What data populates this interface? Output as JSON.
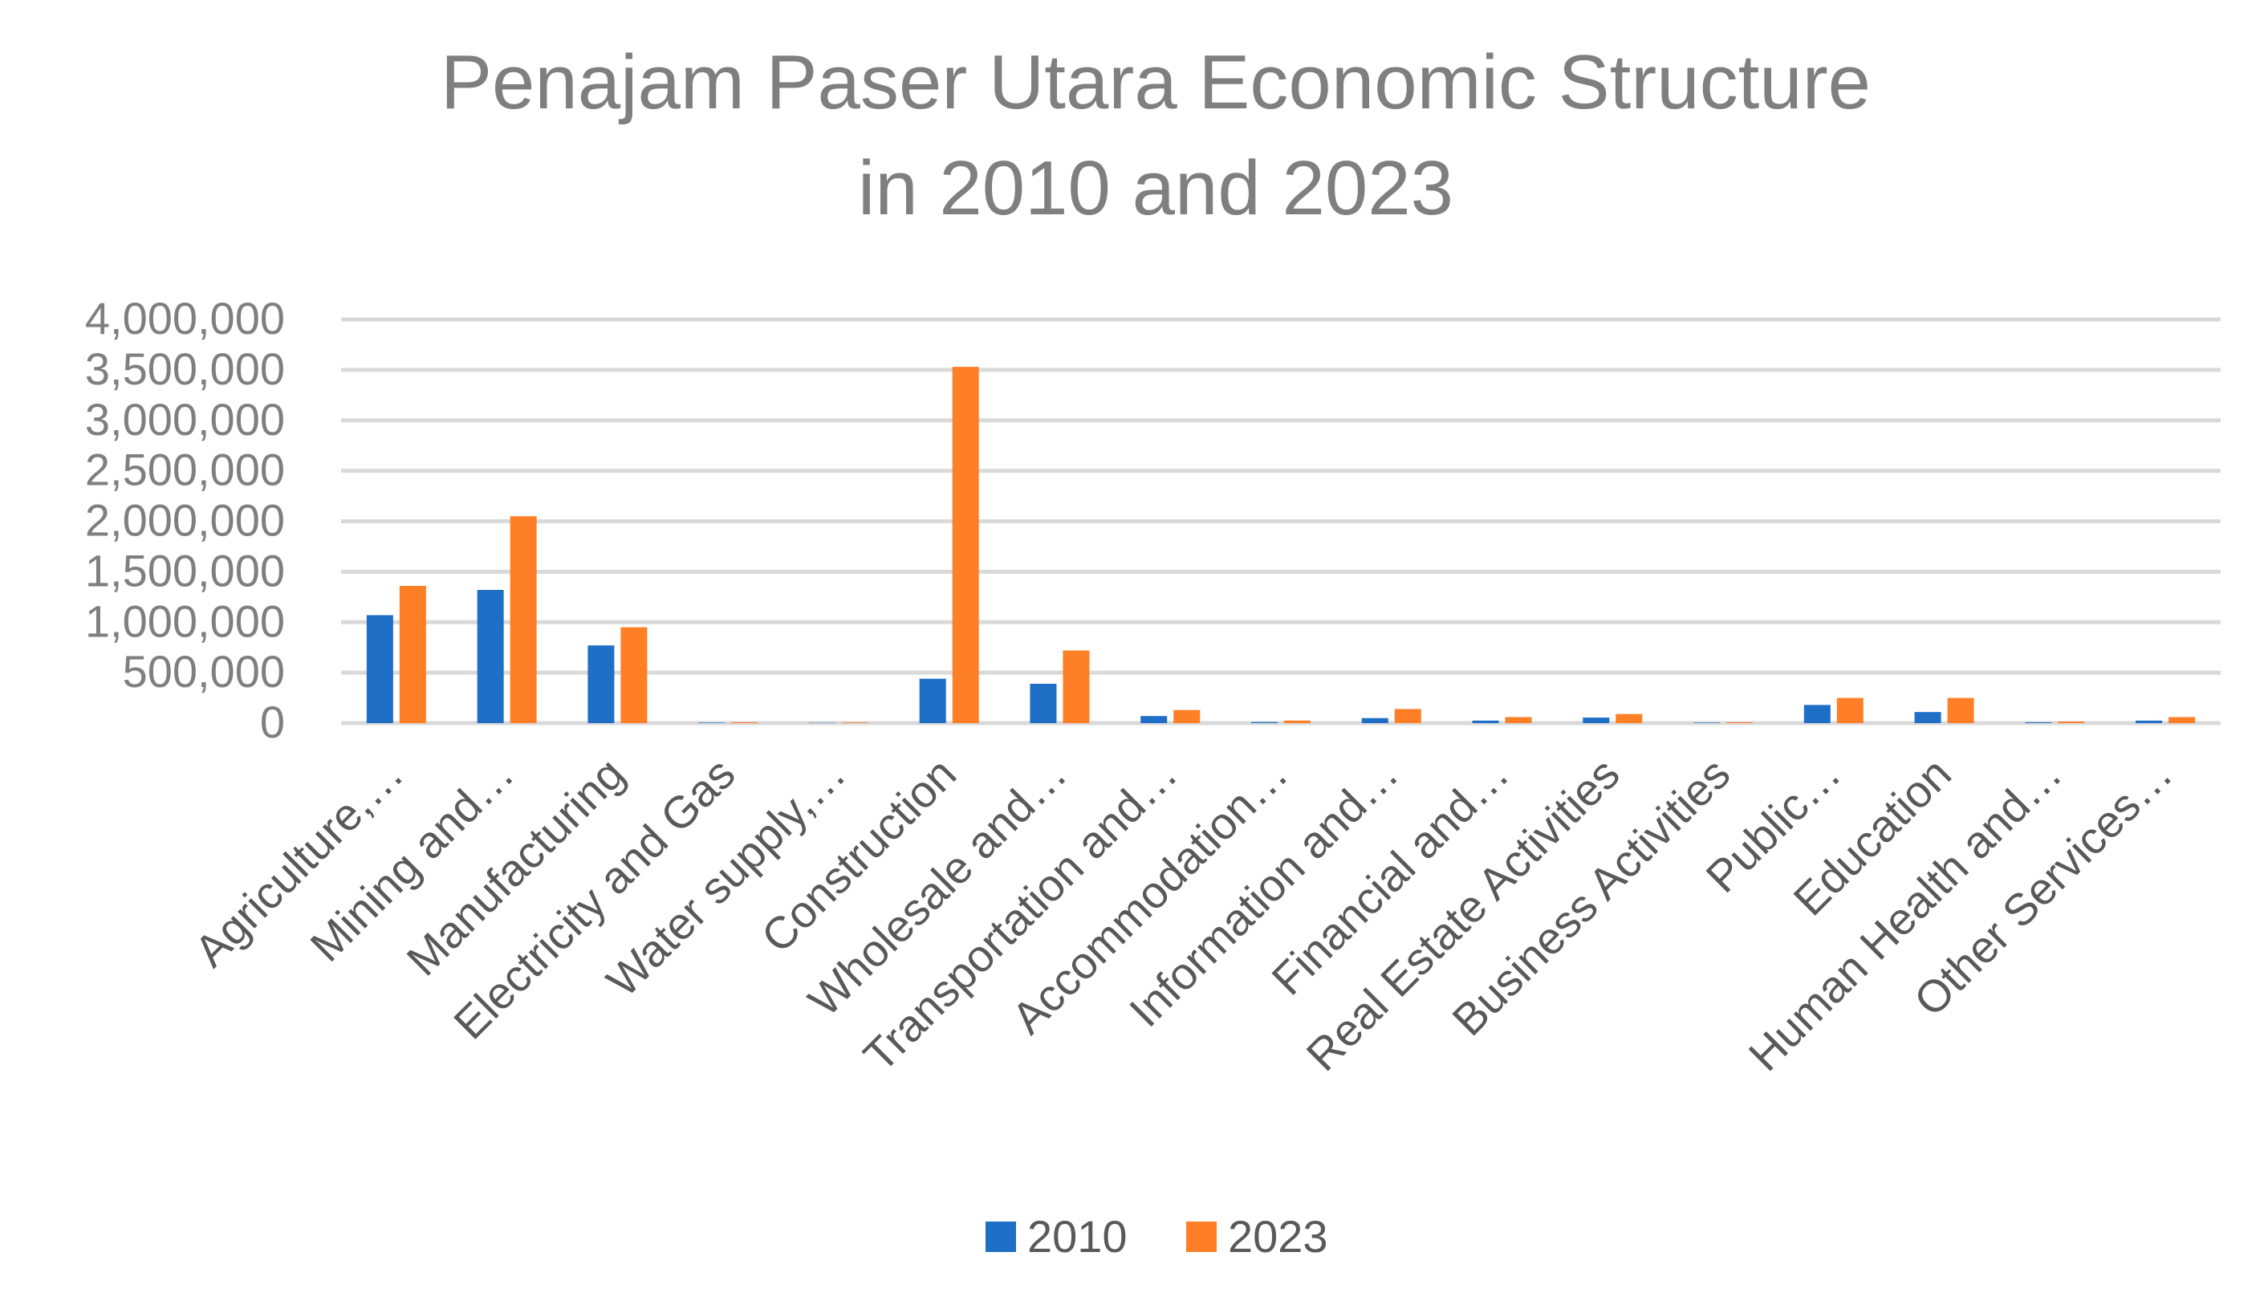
{
  "chart_data": {
    "type": "bar",
    "title": "Penajam Paser Utara Economic Structure in 2010 and 2023",
    "title_lines": [
      "Penajam Paser Utara Economic Structure",
      "in 2010 and 2023"
    ],
    "xlabel": "",
    "ylabel": "",
    "ylim": [
      0,
      4000000
    ],
    "y_ticks": [
      0,
      500000,
      1000000,
      1500000,
      2000000,
      2500000,
      3000000,
      3500000,
      4000000
    ],
    "y_tick_labels": [
      "0",
      "500,000",
      "1,000,000",
      "1,500,000",
      "2,000,000",
      "2,500,000",
      "3,000,000",
      "3,500,000",
      "4,000,000"
    ],
    "grid": true,
    "legend_position": "bottom",
    "categories": [
      "Agriculture,…",
      "Mining and…",
      "Manufacturing",
      "Electricity and Gas",
      "Water supply,…",
      "Construction",
      "Wholesale and…",
      "Transportation and…",
      "Accommodation…",
      "Information and…",
      "Financial and…",
      "Real Estate Activities",
      "Business Activities",
      "Public…",
      "Education",
      "Human Health and…",
      "Other Services…"
    ],
    "series": [
      {
        "name": "2010",
        "color": "#1F6FC6",
        "values": [
          1070000,
          1320000,
          770000,
          5000,
          3000,
          440000,
          390000,
          70000,
          10000,
          50000,
          25000,
          55000,
          5000,
          180000,
          110000,
          8000,
          25000
        ]
      },
      {
        "name": "2023",
        "color": "#FF7F27",
        "values": [
          1360000,
          2050000,
          950000,
          8000,
          6000,
          3530000,
          720000,
          130000,
          25000,
          140000,
          60000,
          90000,
          8000,
          250000,
          250000,
          15000,
          60000
        ]
      }
    ]
  }
}
